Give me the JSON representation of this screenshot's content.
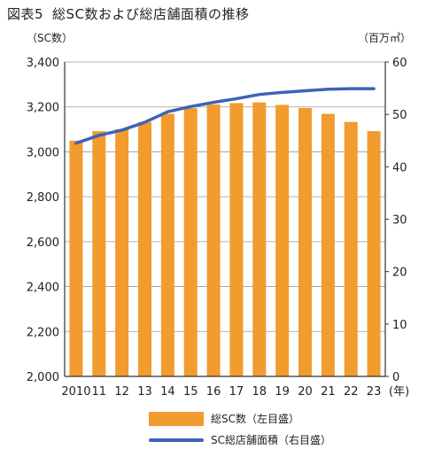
{
  "title": {
    "fig": "図表5",
    "text": "総SC数および総店舗面積の推移"
  },
  "units": {
    "left": "（SC数）",
    "right": "（百万㎡）"
  },
  "colors": {
    "bar": "#f29b2e",
    "line": "#3e63b5",
    "grid": "#9a9a9a",
    "axis": "#333333"
  },
  "chart_data": {
    "type": "bar+line",
    "categories": [
      "2010",
      "11",
      "12",
      "13",
      "14",
      "15",
      "16",
      "17",
      "18",
      "19",
      "20",
      "21",
      "22",
      "23"
    ],
    "xlabel_suffix": "(年)",
    "left_axis": {
      "ylim": [
        2000,
        3400
      ],
      "ticks": [
        "2,000",
        "2,200",
        "2,400",
        "2,600",
        "2,800",
        "3,000",
        "3,200",
        "3,400"
      ],
      "tick_values": [
        2000,
        2200,
        2400,
        2600,
        2800,
        3000,
        3200,
        3400
      ]
    },
    "right_axis": {
      "ylim": [
        0,
        60
      ],
      "ticks": [
        "0",
        "10",
        "20",
        "30",
        "40",
        "50",
        "60"
      ],
      "tick_values": [
        0,
        10,
        20,
        30,
        40,
        50,
        60
      ]
    },
    "series": [
      {
        "name": "総SC数（左目盛）",
        "type": "bar",
        "axis": "left",
        "values": [
          3050,
          3092,
          3101,
          3133,
          3169,
          3195,
          3211,
          3217,
          3220,
          3209,
          3195,
          3169,
          3133,
          3092
        ]
      },
      {
        "name": "SC総店舗面積（右目盛）",
        "type": "line",
        "axis": "right",
        "values": [
          44.5,
          46.0,
          47.0,
          48.5,
          50.5,
          51.5,
          52.3,
          53.0,
          53.8,
          54.2,
          54.5,
          54.8,
          54.9,
          54.9
        ]
      }
    ],
    "grid": "horizontal"
  },
  "legend": {
    "bar_label": "総SC数（左目盛）",
    "line_label": "SC総店舗面積（右目盛）"
  }
}
